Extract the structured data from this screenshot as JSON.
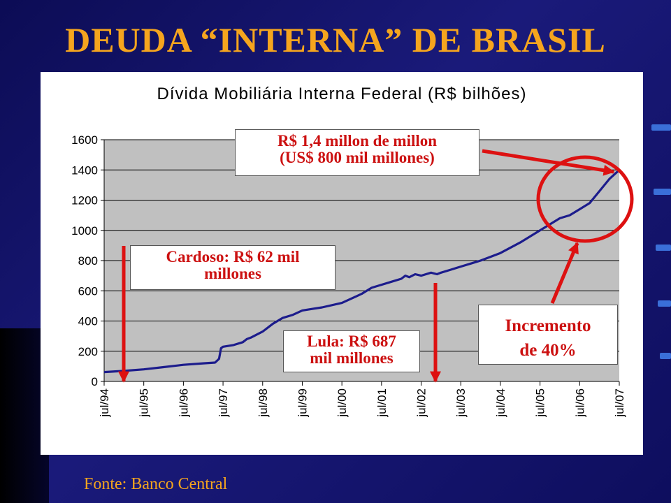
{
  "slide": {
    "title": "DEUDA “INTERNA” DE BRASIL",
    "source": "Fonte: Banco Central",
    "colors": {
      "background": "#12126a",
      "title": "#f5a51e",
      "plot_area": "#c0c0c0",
      "series": "#1c1c8c",
      "annotation": "#dd1111"
    }
  },
  "chart_data": {
    "type": "line",
    "title": "Dívida Mobiliária Interna Federal (R$ bilhões)",
    "xlabel": "",
    "ylabel": "",
    "ylim": [
      0,
      1600
    ],
    "yticks": [
      0,
      200,
      400,
      600,
      800,
      1000,
      1200,
      1400,
      1600
    ],
    "xticks": [
      "jul/94",
      "jul/95",
      "jul/96",
      "jul/97",
      "jul/98",
      "jul/99",
      "jul/00",
      "jul/01",
      "jul/02",
      "jul/03",
      "jul/04",
      "jul/05",
      "jul/06",
      "jul/07"
    ],
    "xrange": [
      1994.5,
      2007.5
    ],
    "grid": "horizontal",
    "legend": "none",
    "series": [
      {
        "x": [
          1994.5,
          1995.0,
          1995.5,
          1996.0,
          1996.5,
          1997.0,
          1997.3,
          1997.4,
          1997.45,
          1997.5,
          1997.75,
          1998.0,
          1998.1,
          1998.2,
          1998.5,
          1998.75,
          1999.0,
          1999.25,
          1999.5,
          1999.75,
          2000.0,
          2000.5,
          2001.0,
          2001.25,
          2001.5,
          2001.75,
          2002.0,
          2002.1,
          2002.2,
          2002.35,
          2002.5,
          2002.75,
          2002.9,
          2003.0,
          2003.25,
          2003.5,
          2003.75,
          2004.0,
          2004.5,
          2005.0,
          2005.5,
          2006.0,
          2006.25,
          2006.5,
          2006.75,
          2007.0,
          2007.25,
          2007.5
        ],
        "values": [
          62,
          70,
          80,
          95,
          110,
          120,
          125,
          150,
          220,
          230,
          240,
          260,
          280,
          290,
          330,
          380,
          420,
          440,
          470,
          480,
          490,
          520,
          580,
          620,
          640,
          660,
          680,
          700,
          690,
          710,
          700,
          720,
          710,
          720,
          740,
          760,
          780,
          800,
          850,
          920,
          1000,
          1080,
          1100,
          1140,
          1180,
          1260,
          1340,
          1400
        ]
      }
    ],
    "annotations": [
      {
        "lines": [
          "Cardoso: R$ 62 mil",
          "millones"
        ]
      },
      {
        "lines": [
          "Lula: R$ 687",
          "mil millones"
        ]
      },
      {
        "lines": [
          "R$ 1,4 millon de millon",
          "(US$ 800 mil millones)"
        ]
      },
      {
        "lines": [
          "Incremento",
          "de 40%"
        ]
      }
    ]
  }
}
